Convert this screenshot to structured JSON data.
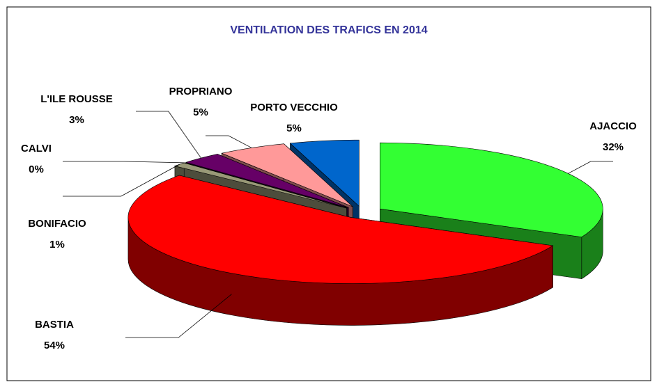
{
  "chart_data": {
    "type": "pie3d",
    "title": "VENTILATION DES TRAFICS EN 2014",
    "categories": [
      "AJACCIO",
      "BASTIA",
      "BONIFACIO",
      "CALVI",
      "L'ILE ROUSSE",
      "PROPRIANO",
      "PORTO VECCHIO"
    ],
    "values": [
      32,
      54,
      1,
      0,
      3,
      5,
      5
    ],
    "value_labels": [
      "32%",
      "54%",
      "1%",
      "0%",
      "3%",
      "5%",
      "5%"
    ],
    "colors": [
      "#33ff33",
      "#ff0000",
      "#999977",
      "#ffffcc",
      "#660066",
      "#ff9999",
      "#0066cc"
    ]
  }
}
